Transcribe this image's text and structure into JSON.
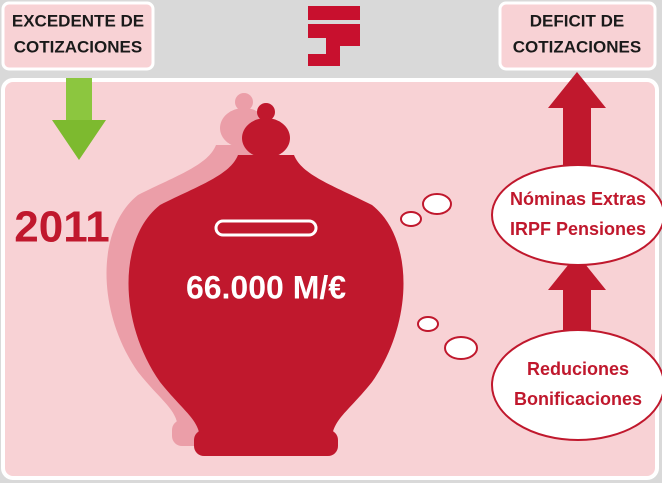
{
  "left_label": {
    "lines": [
      "EXCEDENTE DE",
      "COTIZACIONES"
    ]
  },
  "right_label": {
    "lines": [
      "DEFICIT DE",
      "COTIZACIONES"
    ]
  },
  "year": "2011",
  "amount": "66.000 M/€",
  "bubbles": [
    {
      "lines": [
        "Nóminas Extras",
        "IRPF Pensiones"
      ]
    },
    {
      "lines": [
        "Reduciones",
        "Bonificaciones"
      ]
    }
  ]
}
